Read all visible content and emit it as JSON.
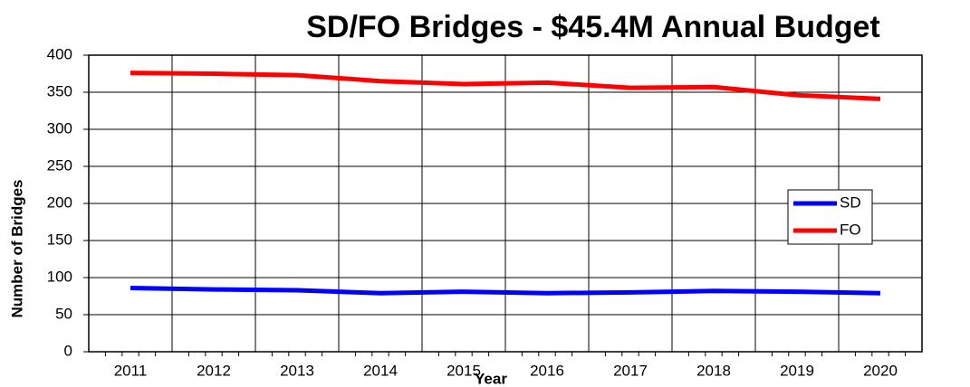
{
  "chart_data": {
    "type": "line",
    "title": "SD/FO Bridges  -  $45.4M  Annual Budget",
    "x_label": "Year",
    "y_label": "Number of Bridges",
    "categories": [
      "2011",
      "2012",
      "2013",
      "2014",
      "2015",
      "2016",
      "2017",
      "2018",
      "2019",
      "2020"
    ],
    "series": [
      {
        "name": "SD",
        "color": "#0000ff",
        "values": [
          86,
          84,
          83,
          79,
          81,
          79,
          80,
          82,
          81,
          79
        ]
      },
      {
        "name": "FO",
        "color": "#ff0000",
        "values": [
          376,
          375,
          373,
          365,
          361,
          363,
          356,
          357,
          346,
          341
        ]
      }
    ],
    "ylim": [
      0,
      400
    ],
    "yticks": [
      0,
      50,
      100,
      150,
      200,
      250,
      300,
      350,
      400
    ],
    "grid": true,
    "legend": "right"
  }
}
